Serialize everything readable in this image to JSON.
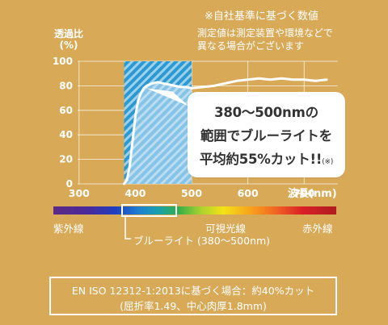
{
  "notes": {
    "own_standard": "※自社基準に基づく数値",
    "measurement_line1": "測定値は測定装置や環境などで",
    "measurement_line2": "異なる場合がございます"
  },
  "colors": {
    "background": "#d8aa58",
    "curve": "#ffffff",
    "blue_band": "#2b9ad4",
    "callout_bg": "#ffffff"
  },
  "callout": {
    "line1": "380～500nmの",
    "line2": "範囲でブルーライトを",
    "line3": "平均約55%カット!!",
    "note": "(※)"
  },
  "spectrum": {
    "uv_label": "紫外線",
    "visible_label": "可視光線",
    "ir_label": "赤外線",
    "bluelight_label": "ブルーライト (380～500nm)"
  },
  "spec_box": {
    "line1": "EN ISO 12312-1:2013に基づく場合：約40%カット",
    "line2": "(屈折率1.49、中心肉厚1.8mm)"
  },
  "chart_data": {
    "type": "line",
    "ylabel_line1": "透過比",
    "ylabel_line2": "(%)",
    "xlabel": "波長(nm)",
    "xlim": [
      260,
      760
    ],
    "ylim": [
      0,
      100
    ],
    "x_ticks": [
      300,
      400,
      500,
      600,
      700
    ],
    "y_ticks": [
      0,
      20,
      40,
      60,
      80,
      100
    ],
    "grid": true,
    "highlight_band": [
      380,
      500
    ],
    "series": [
      {
        "x": [
          380,
          385,
          390,
          395,
          400,
          405,
          410,
          415,
          420,
          430,
          440,
          450,
          460,
          470,
          480,
          490,
          500,
          520,
          540,
          560,
          580,
          600,
          620,
          640,
          660,
          680,
          700,
          720,
          740
        ],
        "y": [
          0,
          3,
          15,
          35,
          55,
          68,
          74,
          78,
          80,
          82,
          83,
          82,
          81,
          80,
          79,
          79,
          78,
          79,
          80,
          82,
          84,
          85,
          86,
          85,
          86,
          85,
          85,
          84,
          85
        ]
      }
    ]
  }
}
